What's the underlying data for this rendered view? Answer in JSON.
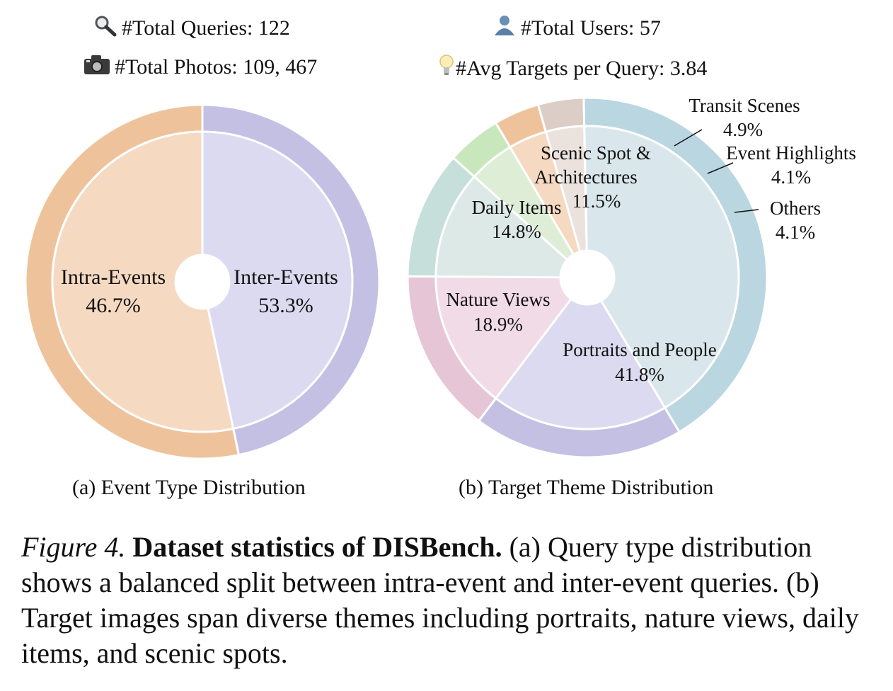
{
  "stats": {
    "total_queries": "#Total Queries: 122",
    "total_users": "#Total Users:  57",
    "total_photos": "#Total Photos: 109, 467",
    "avg_targets": "#Avg Targets per Query: 3.84",
    "icons": [
      "magnifier-icon",
      "user-icon",
      "camera-icon",
      "lightbulb-icon"
    ]
  },
  "chart_data": [
    {
      "type": "pie",
      "subtitle": "(a) Event Type Distribution",
      "slices": [
        {
          "label": "Intra-Events",
          "value": 46.7,
          "value_label": "46.7%",
          "color": "#dcdaf0",
          "ring_color": "#c4c0e4"
        },
        {
          "label": "Inter-Events",
          "value": 53.3,
          "value_label": "53.3%",
          "color": "#f5d9c1",
          "ring_color": "#eec39c"
        }
      ]
    },
    {
      "type": "pie",
      "subtitle": "(b) Target Theme Distribution",
      "slices": [
        {
          "label": "Nature Views",
          "value": 18.9,
          "value_label": "18.9%",
          "color": "#dcdaf0",
          "ring_color": "#c4c0e4"
        },
        {
          "label": "Daily Items",
          "value": 14.8,
          "value_label": "14.8%",
          "color": "#f0dbe6",
          "ring_color": "#e6c6d6"
        },
        {
          "label": "Scenic Spot & Architectures",
          "value": 11.5,
          "value_label": "11.5%",
          "color": "#dce9e6",
          "ring_color": "#c6dfda"
        },
        {
          "label": "Transit Scenes",
          "value": 4.9,
          "value_label": "4.9%",
          "color": "#deeed6",
          "ring_color": "#c9e7bd"
        },
        {
          "label": "Event Highlights",
          "value": 4.1,
          "value_label": "4.1%",
          "color": "#f5d9c1",
          "ring_color": "#eec39c"
        },
        {
          "label": "Others",
          "value": 4.1,
          "value_label": "4.1%",
          "color": "#ebe2de",
          "ring_color": "#dccdc6"
        },
        {
          "label": "Portraits and People",
          "value": 41.8,
          "value_label": "41.8%",
          "color": "#d9e7ec",
          "ring_color": "#bad6e0"
        }
      ]
    }
  ],
  "caption": {
    "fig": "Figure 4.",
    "title": "Dataset statistics of DISBench.",
    "text": " (a) Query type distribution shows a balanced split between intra-event and inter-event queries. (b) Target images span diverse themes including portraits, nature views, daily items, and scenic spots."
  }
}
